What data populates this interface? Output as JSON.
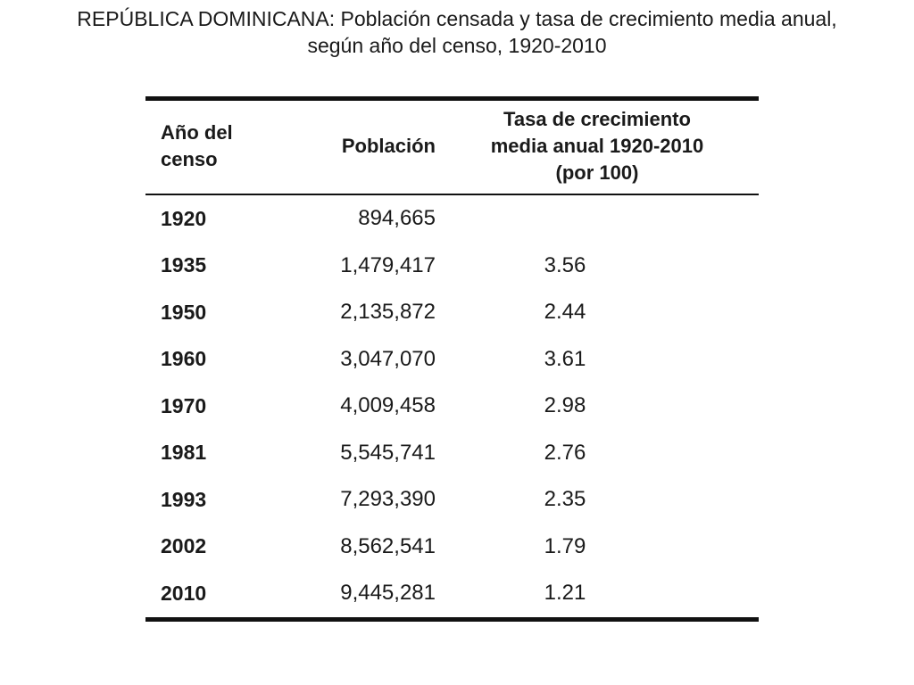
{
  "chart_data": {
    "type": "table",
    "title": "REPÚBLICA DOMINICANA: Población censada y tasa de crecimiento media anual,",
    "subtitle": "según año del censo, 1920-2010",
    "columns": [
      "Año del censo",
      "Población",
      "Tasa de crecimiento media anual 1920-2010 (por 100)"
    ],
    "header_lines": {
      "year": [
        "Año del",
        "censo"
      ],
      "population": [
        "Población"
      ],
      "rate": [
        "Tasa de crecimiento",
        "media anual 1920-2010",
        "(por 100)"
      ]
    },
    "rows": [
      {
        "year": "1920",
        "population": "894,665",
        "rate": ""
      },
      {
        "year": "1935",
        "population": "1,479,417",
        "rate": "3.56"
      },
      {
        "year": "1950",
        "population": "2,135,872",
        "rate": "2.44"
      },
      {
        "year": "1960",
        "population": "3,047,070",
        "rate": "3.61"
      },
      {
        "year": "1970",
        "population": "4,009,458",
        "rate": "2.98"
      },
      {
        "year": "1981",
        "population": "5,545,741",
        "rate": "2.76"
      },
      {
        "year": "1993",
        "population": "7,293,390",
        "rate": "2.35"
      },
      {
        "year": "2002",
        "population": "8,562,541",
        "rate": "1.79"
      },
      {
        "year": "2010",
        "population": "9,445,281",
        "rate": "1.21"
      }
    ]
  }
}
